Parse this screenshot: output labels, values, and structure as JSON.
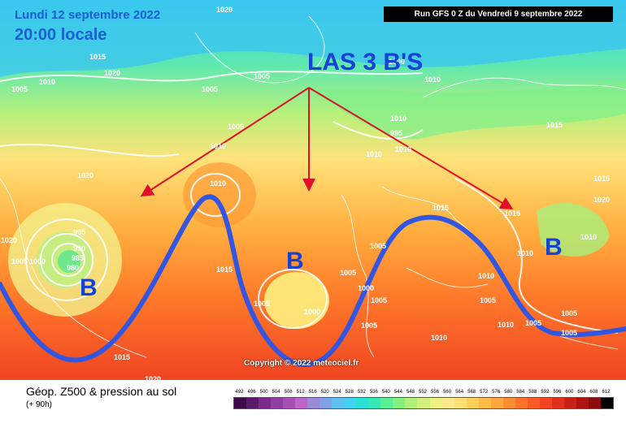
{
  "header": {
    "date_line1": "Lundi 12 septembre 2022",
    "date_line2": "20:00 locale",
    "run_info": "Run GFS 0 Z du Vendredi 9 septembre 2022"
  },
  "annotation": {
    "title": "LAS 3 B'S",
    "b_labels": [
      "B",
      "B",
      "B"
    ],
    "arrow_color": "#e0102a",
    "trough_line_color": "#3356e0"
  },
  "isobars": [
    "1020",
    "1015",
    "1020",
    "1010",
    "1005",
    "1005",
    "1005",
    "1010",
    "1005",
    "1000",
    "995",
    "1010",
    "1010",
    "1020",
    "1015",
    "1010",
    "995",
    "990",
    "985",
    "980",
    "1005",
    "1000",
    "1015",
    "1005",
    "1005",
    "1000",
    "1005",
    "1005",
    "1000",
    "1010",
    "1010",
    "1005",
    "1005",
    "1015",
    "1020",
    "1015",
    "1015",
    "1010",
    "1010",
    "1005",
    "1005",
    "1005",
    "1010",
    "1015",
    "1015",
    "1020",
    "1020",
    "1010",
    "1010"
  ],
  "copyright": "Copyright © 2022 meteociel.fr",
  "legend": {
    "title": "Géop. Z500 & pression au sol",
    "subtitle": "(+ 90h)",
    "scale": [
      "492",
      "496",
      "500",
      "504",
      "508",
      "512",
      "516",
      "520",
      "524",
      "528",
      "532",
      "536",
      "540",
      "544",
      "548",
      "552",
      "556",
      "560",
      "564",
      "568",
      "572",
      "576",
      "580",
      "584",
      "588",
      "592",
      "596",
      "600",
      "604",
      "608",
      "612"
    ],
    "colors": [
      "#3d0b4a",
      "#5a1a6a",
      "#7a2a8a",
      "#8e3da0",
      "#a84fb5",
      "#c064c8",
      "#9c8ad8",
      "#7fa2e6",
      "#5ebff0",
      "#3fd3ee",
      "#29e0d4",
      "#36e6b4",
      "#5aee96",
      "#86f07e",
      "#b0f07a",
      "#d3f07c",
      "#eef080",
      "#fbe88a",
      "#ffe074",
      "#ffd058",
      "#ffbc46",
      "#ffa63c",
      "#ff8e32",
      "#ff742a",
      "#fc5a26",
      "#f04422",
      "#e0301e",
      "#c92018",
      "#b01412",
      "#8a0c0c",
      "#000000"
    ]
  }
}
